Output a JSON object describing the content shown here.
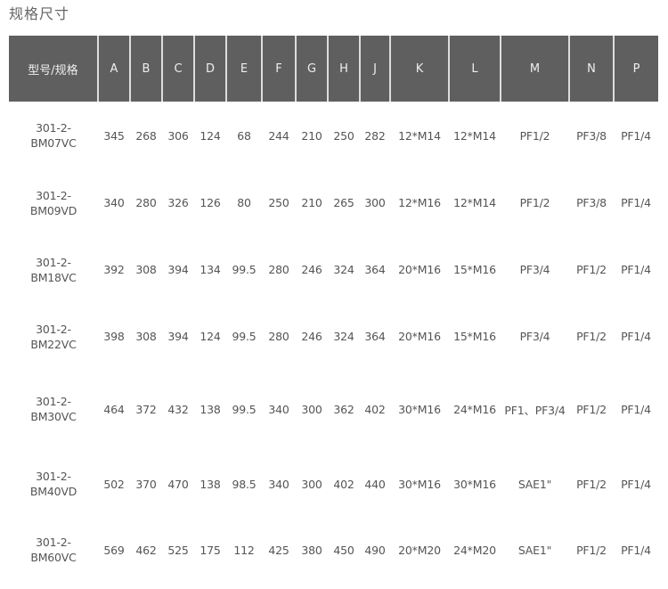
{
  "title": "规格尺寸",
  "headers": [
    "型号/规格",
    "A",
    "B",
    "C",
    "D",
    "E",
    "F",
    "G",
    "H",
    "J",
    "K",
    "L",
    "M",
    "N",
    "P"
  ],
  "rows": [
    {
      "model": [
        "301-2-",
        "BM07VC"
      ],
      "values": [
        "345",
        "268",
        "306",
        "124",
        "68",
        "244",
        "210",
        "250",
        "282",
        "12*M14",
        "12*M14",
        "PF1/2",
        "PF3/8",
        "PF1/4"
      ]
    },
    {
      "model": [
        "301-2-",
        "BM09VD"
      ],
      "values": [
        "340",
        "280",
        "326",
        "126",
        "80",
        "250",
        "210",
        "265",
        "300",
        "12*M16",
        "12*M14",
        "PF1/2",
        "PF3/8",
        "PF1/4"
      ]
    },
    {
      "model": [
        "301-2-",
        "BM18VC"
      ],
      "values": [
        "392",
        "308",
        "394",
        "134",
        "99.5",
        "280",
        "246",
        "324",
        "364",
        "20*M16",
        "15*M16",
        "PF3/4",
        "PF1/2",
        "PF1/4"
      ]
    },
    {
      "model": [
        "301-2-",
        "BM22VC"
      ],
      "values": [
        "398",
        "308",
        "394",
        "124",
        "99.5",
        "280",
        "246",
        "324",
        "364",
        "20*M16",
        "15*M16",
        "PF3/4",
        "PF1/2",
        "PF1/4"
      ]
    },
    {
      "model": [
        "301-2-",
        "BM30VC"
      ],
      "values": [
        "464",
        "372",
        "432",
        "138",
        "99.5",
        "340",
        "300",
        "362",
        "402",
        "30*M16",
        "24*M16",
        "PF1、PF3/4",
        "PF1/2",
        "PF1/4"
      ]
    },
    {
      "model": [
        "301-2-",
        "BM40VD"
      ],
      "values": [
        "502",
        "370",
        "470",
        "138",
        "98.5",
        "340",
        "300",
        "402",
        "440",
        "30*M16",
        "30*M16",
        "SAE1\"",
        "PF1/2",
        "PF1/4"
      ]
    },
    {
      "model": [
        "301-2-",
        "BM60VC"
      ],
      "values": [
        "569",
        "462",
        "525",
        "175",
        "112",
        "425",
        "380",
        "450",
        "490",
        "20*M20",
        "24*M20",
        "SAE1\"",
        "PF1/2",
        "PF1/4"
      ]
    }
  ]
}
